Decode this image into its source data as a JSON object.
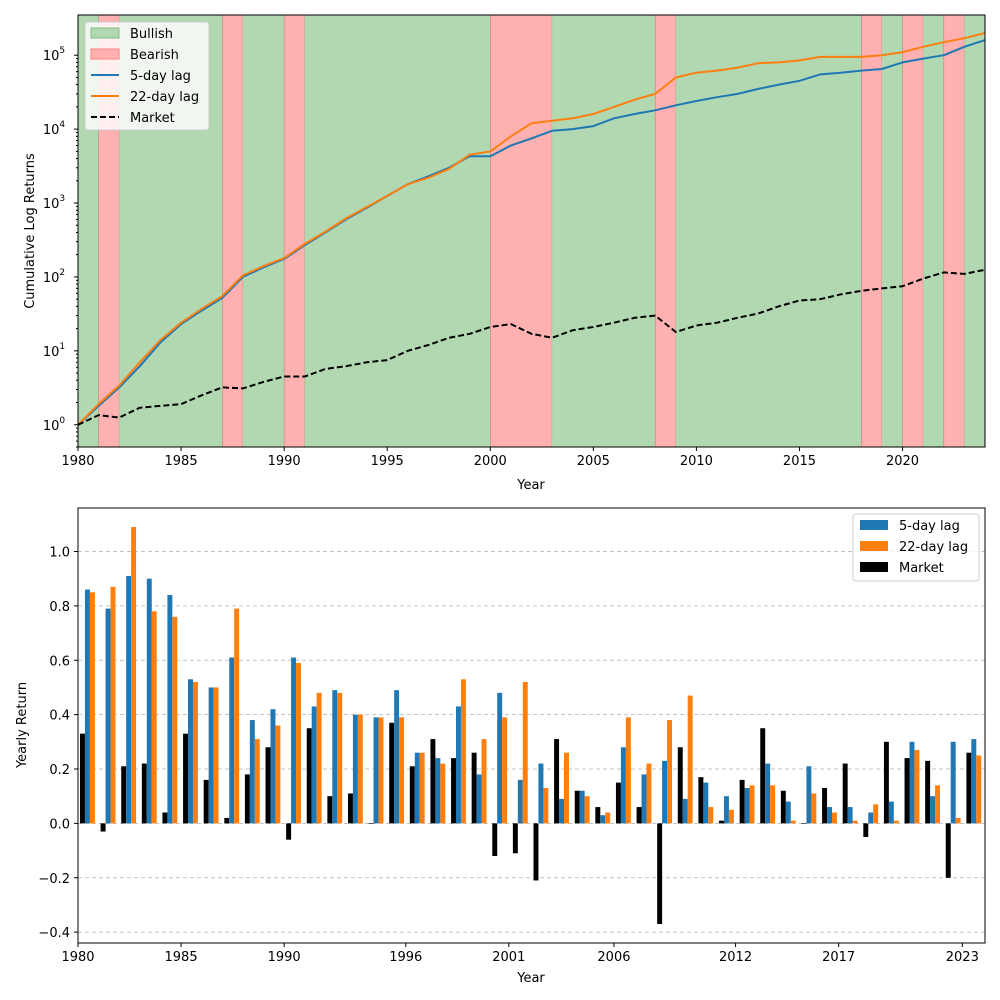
{
  "chart_data": [
    {
      "type": "line",
      "ylabel": "Cumulative Log Returns",
      "xlabel": "Year",
      "yscale": "log",
      "xlim": [
        1980,
        2024
      ],
      "ylim": [
        0.5,
        350000
      ],
      "x_ticks": [
        1980,
        1985,
        1990,
        1995,
        2000,
        2005,
        2010,
        2015,
        2020
      ],
      "y_ticks": [
        {
          "value": 1,
          "base": "10",
          "exp": "0"
        },
        {
          "value": 10,
          "base": "10",
          "exp": "1"
        },
        {
          "value": 100,
          "base": "10",
          "exp": "2"
        },
        {
          "value": 1000,
          "base": "10",
          "exp": "3"
        },
        {
          "value": 10000,
          "base": "10",
          "exp": "4"
        },
        {
          "value": 100000,
          "base": "10",
          "exp": "5"
        }
      ],
      "grid": false,
      "legend_position": "top-left",
      "legend": [
        "Bullish",
        "Bearish",
        "5-day lag",
        "22-day lag",
        "Market"
      ],
      "regimes": [
        {
          "label": "Bullish",
          "start": 1980,
          "end": 1981,
          "color": "#b2d8b2"
        },
        {
          "label": "Bearish",
          "start": 1981,
          "end": 1982,
          "color": "#ffb0b0"
        },
        {
          "label": "Bullish",
          "start": 1982,
          "end": 1987,
          "color": "#b2d8b2"
        },
        {
          "label": "Bearish",
          "start": 1987,
          "end": 1988,
          "color": "#ffb0b0"
        },
        {
          "label": "Bullish",
          "start": 1988,
          "end": 1990,
          "color": "#b2d8b2"
        },
        {
          "label": "Bearish",
          "start": 1990,
          "end": 1991,
          "color": "#ffb0b0"
        },
        {
          "label": "Bullish",
          "start": 1991,
          "end": 2000,
          "color": "#b2d8b2"
        },
        {
          "label": "Bearish",
          "start": 2000,
          "end": 2003,
          "color": "#ffb0b0"
        },
        {
          "label": "Bullish",
          "start": 2003,
          "end": 2008,
          "color": "#b2d8b2"
        },
        {
          "label": "Bearish",
          "start": 2008,
          "end": 2009,
          "color": "#ffb0b0"
        },
        {
          "label": "Bullish",
          "start": 2009,
          "end": 2018,
          "color": "#b2d8b2"
        },
        {
          "label": "Bearish",
          "start": 2018,
          "end": 2019,
          "color": "#ffb0b0"
        },
        {
          "label": "Bullish",
          "start": 2019,
          "end": 2020,
          "color": "#b2d8b2"
        },
        {
          "label": "Bearish",
          "start": 2020,
          "end": 2021,
          "color": "#ffb0b0"
        },
        {
          "label": "Bullish",
          "start": 2021,
          "end": 2022,
          "color": "#b2d8b2"
        },
        {
          "label": "Bearish",
          "start": 2022,
          "end": 2023,
          "color": "#ffb0b0"
        },
        {
          "label": "Bullish",
          "start": 2023,
          "end": 2024,
          "color": "#b2d8b2"
        }
      ],
      "series": [
        {
          "name": "5-day lag",
          "color": "#1f77b4",
          "style": "solid",
          "x": [
            1980,
            1981,
            1982,
            1983,
            1984,
            1985,
            1986,
            1987,
            1988,
            1989,
            1990,
            1991,
            1992,
            1993,
            1994,
            1995,
            1996,
            1997,
            1998,
            1999,
            2000,
            2001,
            2002,
            2003,
            2004,
            2005,
            2006,
            2007,
            2008,
            2009,
            2010,
            2011,
            2012,
            2013,
            2014,
            2015,
            2016,
            2017,
            2018,
            2019,
            2020,
            2021,
            2022,
            2023,
            2024
          ],
          "y": [
            1.0,
            1.8,
            3.2,
            6.2,
            13,
            23,
            35,
            52,
            100,
            135,
            175,
            270,
            400,
            600,
            860,
            1250,
            1800,
            2300,
            3000,
            4300,
            4300,
            6000,
            7500,
            9500,
            10000,
            11000,
            14000,
            16000,
            18000,
            21000,
            24000,
            27000,
            30000,
            35000,
            40000,
            45000,
            55000,
            58000,
            62000,
            65000,
            80000,
            90000,
            100000,
            130000,
            160000
          ]
        },
        {
          "name": "22-day lag",
          "color": "#ff7f0e",
          "style": "solid",
          "x": [
            1980,
            1981,
            1982,
            1983,
            1984,
            1985,
            1986,
            1987,
            1988,
            1989,
            1990,
            1991,
            1992,
            1993,
            1994,
            1995,
            1996,
            1997,
            1998,
            1999,
            2000,
            2001,
            2002,
            2003,
            2004,
            2005,
            2006,
            2007,
            2008,
            2009,
            2010,
            2011,
            2012,
            2013,
            2014,
            2015,
            2016,
            2017,
            2018,
            2019,
            2020,
            2021,
            2022,
            2023,
            2024
          ],
          "y": [
            1.0,
            1.9,
            3.4,
            7.0,
            14,
            24,
            37,
            55,
            105,
            140,
            180,
            280,
            410,
            620,
            880,
            1250,
            1800,
            2200,
            2900,
            4500,
            5000,
            8000,
            12000,
            13000,
            14000,
            16000,
            20000,
            25000,
            30000,
            50000,
            58000,
            62000,
            68000,
            78000,
            80000,
            85000,
            95000,
            95000,
            95000,
            100000,
            110000,
            130000,
            150000,
            170000,
            200000
          ]
        },
        {
          "name": "Market",
          "color": "#000000",
          "style": "dashed",
          "x": [
            1980,
            1981,
            1982,
            1983,
            1984,
            1985,
            1986,
            1987,
            1988,
            1989,
            1990,
            1991,
            1992,
            1993,
            1994,
            1995,
            1996,
            1997,
            1998,
            1999,
            2000,
            2001,
            2002,
            2003,
            2004,
            2005,
            2006,
            2007,
            2008,
            2009,
            2010,
            2011,
            2012,
            2013,
            2014,
            2015,
            2016,
            2017,
            2018,
            2019,
            2020,
            2021,
            2022,
            2023,
            2024
          ],
          "y": [
            1.0,
            1.35,
            1.25,
            1.7,
            1.8,
            1.9,
            2.5,
            3.2,
            3.1,
            3.8,
            4.5,
            4.5,
            5.7,
            6.2,
            7.0,
            7.5,
            10,
            12,
            15,
            17,
            21,
            23,
            17,
            15,
            19,
            21,
            24,
            28,
            30,
            18,
            22,
            24,
            28,
            32,
            40,
            48,
            50,
            58,
            65,
            70,
            75,
            95,
            115,
            110,
            125
          ]
        }
      ]
    },
    {
      "type": "bar",
      "ylabel": "Yearly Return",
      "xlabel": "Year",
      "ylim": [
        -0.44,
        1.16
      ],
      "y_ticks": [
        "−0.4",
        "−0.2",
        "0.0",
        "0.2",
        "0.4",
        "0.6",
        "0.8",
        "1.0"
      ],
      "x_ticks": [
        {
          "label": "1980",
          "year": 1980
        },
        {
          "label": "1985",
          "year": 1985
        },
        {
          "label": "1990",
          "year": 1990
        },
        {
          "label": "1996",
          "year": 1995.9
        },
        {
          "label": "2001",
          "year": 2000.9
        },
        {
          "label": "2006",
          "year": 2006
        },
        {
          "label": "2012",
          "year": 2011.9
        },
        {
          "label": "2017",
          "year": 2016.9
        },
        {
          "label": "2023",
          "year": 2022.9
        }
      ],
      "grid": "horizontal-dashed",
      "legend_position": "top-right",
      "categories": [
        1980,
        1981,
        1982,
        1983,
        1984,
        1985,
        1986,
        1987,
        1988,
        1989,
        1990,
        1991,
        1992,
        1993,
        1994,
        1995,
        1996,
        1997,
        1998,
        1999,
        2000,
        2001,
        2002,
        2003,
        2004,
        2005,
        2006,
        2007,
        2008,
        2009,
        2010,
        2011,
        2012,
        2013,
        2014,
        2015,
        2016,
        2017,
        2018,
        2019,
        2020,
        2021,
        2022,
        2023
      ],
      "series": [
        {
          "name": "5-day lag",
          "color": "#1f77b4",
          "values": [
            0.86,
            0.79,
            0.91,
            0.9,
            0.84,
            0.53,
            0.5,
            0.61,
            0.38,
            0.42,
            0.61,
            0.43,
            0.49,
            0.4,
            0.39,
            0.49,
            0.26,
            0.24,
            0.43,
            0.18,
            0.48,
            0.16,
            0.22,
            0.09,
            0.12,
            0.03,
            0.28,
            0.18,
            0.23,
            0.09,
            0.15,
            0.1,
            0.13,
            0.22,
            0.08,
            0.21,
            0.06,
            0.06,
            0.04,
            0.08,
            0.3,
            0.1,
            0.3,
            0.31
          ]
        },
        {
          "name": "22-day lag",
          "color": "#ff7f0e",
          "values": [
            0.85,
            0.87,
            1.09,
            0.78,
            0.76,
            0.52,
            0.5,
            0.79,
            0.31,
            0.36,
            0.59,
            0.48,
            0.48,
            0.4,
            0.39,
            0.39,
            0.26,
            0.22,
            0.53,
            0.31,
            0.39,
            0.52,
            0.13,
            0.26,
            0.1,
            0.04,
            0.39,
            0.22,
            0.38,
            0.47,
            0.06,
            0.05,
            0.14,
            0.14,
            0.01,
            0.11,
            0.04,
            0.01,
            0.07,
            0.01,
            0.27,
            0.14,
            0.02,
            0.25
          ]
        },
        {
          "name": "Market",
          "color": "#000000",
          "values": [
            0.33,
            -0.03,
            0.21,
            0.22,
            0.04,
            0.33,
            0.16,
            0.02,
            0.18,
            0.28,
            -0.06,
            0.35,
            0.1,
            0.11,
            0.0,
            0.37,
            0.21,
            0.31,
            0.24,
            0.26,
            -0.12,
            -0.11,
            -0.21,
            0.31,
            0.12,
            0.06,
            0.15,
            0.06,
            -0.37,
            0.28,
            0.17,
            0.01,
            0.16,
            0.35,
            0.12,
            0.0,
            0.13,
            0.22,
            -0.05,
            0.3,
            0.24,
            0.23,
            -0.2,
            0.26
          ]
        }
      ]
    }
  ]
}
